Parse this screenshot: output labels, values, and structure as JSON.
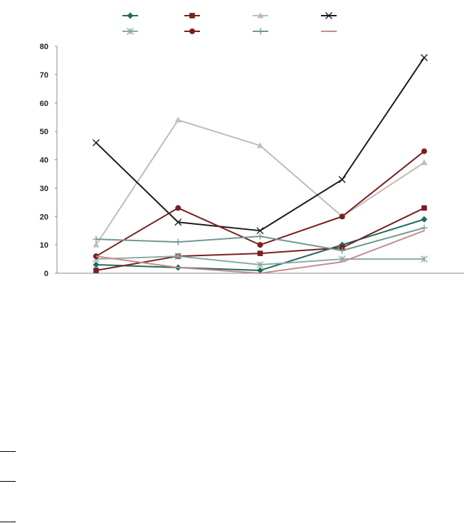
{
  "chart_data": {
    "type": "line",
    "categories": [
      "",
      "",
      "",
      "",
      ""
    ],
    "ylim": [
      0,
      80
    ],
    "yticks": [
      0,
      10,
      20,
      30,
      40,
      50,
      60,
      70,
      80
    ],
    "grid": false,
    "legend_position": "top",
    "series": [
      {
        "color": "#1f6b5c",
        "marker": "diamond",
        "values": [
          3,
          2,
          1,
          10,
          19
        ]
      },
      {
        "color": "#7a1f1f",
        "marker": "square",
        "values": [
          1,
          6,
          7,
          9,
          23
        ]
      },
      {
        "color": "#c4bab6",
        "marker": "triangle",
        "values": [
          10,
          54,
          45,
          20,
          39
        ]
      },
      {
        "color": "#1a1a1a",
        "marker": "x",
        "values": [
          46,
          18,
          15,
          33,
          76
        ]
      },
      {
        "color": "#8aaaa3",
        "marker": "asterisk",
        "values": [
          5,
          6,
          3,
          5,
          5
        ]
      },
      {
        "color": "#7a1f1f",
        "marker": "circle",
        "values": [
          6,
          23,
          10,
          20,
          43
        ]
      },
      {
        "color": "#6e998f",
        "marker": "plus",
        "values": [
          12,
          11,
          13,
          8,
          16
        ]
      },
      {
        "color": "#c48d8d",
        "marker": "none",
        "values": [
          6,
          2,
          0,
          4,
          15
        ]
      }
    ]
  }
}
